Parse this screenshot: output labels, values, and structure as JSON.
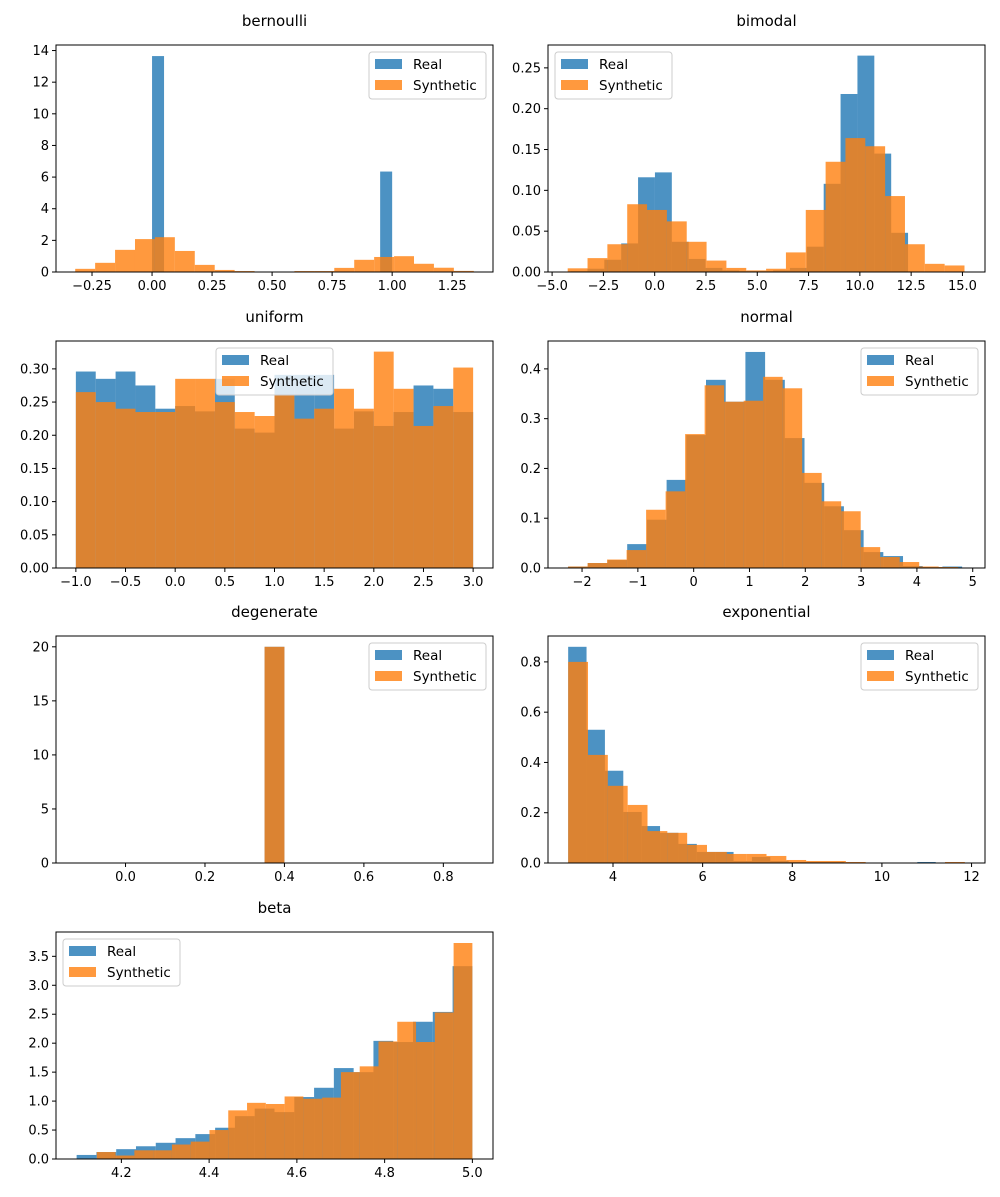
{
  "colors": {
    "real": "#1f77b4",
    "synthetic": "#ff7f0e",
    "alpha": 0.8
  },
  "chart_data": [
    {
      "type": "bar",
      "title": "bernoulli",
      "legend": "upper-right",
      "legend_entries": [
        "Real",
        "Synthetic"
      ],
      "xlim": [
        -0.4,
        1.42
      ],
      "ylim": [
        0,
        14.35
      ],
      "xticks": [
        -0.25,
        0,
        0.25,
        0.5,
        0.75,
        1.0,
        1.25
      ],
      "xtick_labels": [
        "−0.25",
        "0.00",
        "0.25",
        "0.50",
        "0.75",
        "1.00",
        "1.25"
      ],
      "yticks": [
        0,
        2,
        4,
        6,
        8,
        10,
        12,
        14
      ],
      "ytick_labels": [
        "0",
        "2",
        "4",
        "6",
        "8",
        "10",
        "12",
        "14"
      ],
      "series": [
        {
          "name": "Real",
          "range": [
            0,
            1
          ],
          "values": [
            13.65,
            0,
            0,
            0,
            0,
            0,
            0,
            0,
            0,
            0,
            0,
            0,
            0,
            0,
            0,
            0,
            0,
            0,
            0,
            6.35
          ]
        },
        {
          "name": "Synthetic",
          "range": [
            -0.32,
            1.34
          ],
          "values": [
            0.2,
            0.58,
            1.4,
            2.08,
            2.2,
            1.33,
            0.45,
            0.13,
            0.06,
            0,
            0,
            0.06,
            0.06,
            0.26,
            0.77,
            0.95,
            1.0,
            0.52,
            0.27,
            0.07
          ]
        }
      ]
    },
    {
      "type": "bar",
      "title": "bimodal",
      "legend": "upper-left",
      "legend_entries": [
        "Real",
        "Synthetic"
      ],
      "xlim": [
        -5.2,
        16.1
      ],
      "ylim": [
        0,
        0.278
      ],
      "xticks": [
        -5,
        -2.5,
        0,
        2.5,
        5,
        7.5,
        10,
        12.5,
        15
      ],
      "xtick_labels": [
        "−5.0",
        "−2.5",
        "0.0",
        "2.5",
        "5.0",
        "7.5",
        "10.0",
        "12.5",
        "15.0"
      ],
      "yticks": [
        0,
        0.05,
        0.1,
        0.15,
        0.2,
        0.25
      ],
      "ytick_labels": [
        "0.00",
        "0.05",
        "0.10",
        "0.15",
        "0.20",
        "0.25"
      ],
      "series": [
        {
          "name": "Real",
          "range": [
            -4.1,
            12.35
          ],
          "values": [
            0.001,
            0.004,
            0.015,
            0.035,
            0.116,
            0.122,
            0.037,
            0.016,
            0.005,
            0.002,
            0.001,
            0.001,
            0.002,
            0.005,
            0.031,
            0.108,
            0.218,
            0.265,
            0.145,
            0.048
          ]
        },
        {
          "name": "Synthetic",
          "range": [
            -4.24,
            15.1
          ],
          "values": [
            0.0045,
            0.017,
            0.034,
            0.083,
            0.076,
            0.062,
            0.037,
            0.014,
            0.005,
            0.002,
            0.004,
            0.024,
            0.076,
            0.135,
            0.164,
            0.154,
            0.093,
            0.034,
            0.01,
            0.008
          ]
        }
      ]
    },
    {
      "type": "bar",
      "title": "uniform",
      "legend": "upper-center",
      "legend_entries": [
        "Real",
        "Synthetic"
      ],
      "xlim": [
        -1.2,
        3.2
      ],
      "ylim": [
        0,
        0.342
      ],
      "xticks": [
        -1,
        -0.5,
        0,
        0.5,
        1,
        1.5,
        2,
        2.5,
        3
      ],
      "xtick_labels": [
        "−1.0",
        "−0.5",
        "0.0",
        "0.5",
        "1.0",
        "1.5",
        "2.0",
        "2.5",
        "3.0"
      ],
      "yticks": [
        0,
        0.05,
        0.1,
        0.15,
        0.2,
        0.25,
        0.3
      ],
      "ytick_labels": [
        "0.00",
        "0.05",
        "0.10",
        "0.15",
        "0.20",
        "0.25",
        "0.30"
      ],
      "series": [
        {
          "name": "Real",
          "range": [
            -1,
            3
          ],
          "values": [
            0.296,
            0.285,
            0.296,
            0.275,
            0.24,
            0.244,
            0.236,
            0.285,
            0.21,
            0.204,
            0.291,
            0.291,
            0.291,
            0.21,
            0.236,
            0.214,
            0.235,
            0.275,
            0.27,
            0.235
          ]
        },
        {
          "name": "Synthetic",
          "range": [
            -1,
            3
          ],
          "values": [
            0.265,
            0.25,
            0.24,
            0.235,
            0.235,
            0.285,
            0.285,
            0.25,
            0.235,
            0.229,
            0.261,
            0.225,
            0.24,
            0.27,
            0.24,
            0.326,
            0.27,
            0.214,
            0.244,
            0.302
          ]
        }
      ]
    },
    {
      "type": "bar",
      "title": "normal",
      "legend": "upper-right",
      "legend_entries": [
        "Real",
        "Synthetic"
      ],
      "xlim": [
        -2.61,
        5.22
      ],
      "ylim": [
        0,
        0.456
      ],
      "xticks": [
        -2,
        -1,
        0,
        1,
        2,
        3,
        4,
        5
      ],
      "xtick_labels": [
        "−2",
        "−1",
        "0",
        "1",
        "2",
        "3",
        "4",
        "5"
      ],
      "yticks": [
        0,
        0.1,
        0.2,
        0.3,
        0.4
      ],
      "ytick_labels": [
        "0.0",
        "0.1",
        "0.2",
        "0.3",
        "0.4"
      ],
      "series": [
        {
          "name": "Real",
          "range": [
            -2.25,
            4.81
          ],
          "values": [
            0.003,
            0.01,
            0.016,
            0.048,
            0.097,
            0.177,
            0.267,
            0.378,
            0.334,
            0.434,
            0.378,
            0.261,
            0.171,
            0.124,
            0.076,
            0.032,
            0.024,
            0.004,
            0.002,
            0.003
          ]
        },
        {
          "name": "Synthetic",
          "range": [
            -2.25,
            4.74
          ],
          "values": [
            0.003,
            0.01,
            0.017,
            0.036,
            0.117,
            0.154,
            0.269,
            0.367,
            0.334,
            0.336,
            0.384,
            0.361,
            0.191,
            0.134,
            0.114,
            0.042,
            0.022,
            0.012,
            0.003,
            0.002
          ]
        }
      ]
    },
    {
      "type": "bar",
      "title": "degenerate",
      "legend": "upper-right",
      "legend_entries": [
        "Real",
        "Synthetic"
      ],
      "xlim": [
        -0.175,
        0.925
      ],
      "ylim": [
        0,
        21
      ],
      "xticks": [
        0,
        0.2,
        0.4,
        0.6,
        0.8
      ],
      "xtick_labels": [
        "0.0",
        "0.2",
        "0.4",
        "0.6",
        "0.8"
      ],
      "yticks": [
        0,
        5,
        10,
        15,
        20
      ],
      "ytick_labels": [
        "0",
        "5",
        "10",
        "15",
        "20"
      ],
      "series": [
        {
          "name": "Real",
          "range": [
            -0.1,
            0.9
          ],
          "values": [
            0,
            0,
            0,
            0,
            0,
            0,
            0,
            0,
            0,
            20,
            0,
            0,
            0,
            0,
            0,
            0,
            0,
            0,
            0,
            0
          ]
        },
        {
          "name": "Synthetic",
          "range": [
            -0.1,
            0.9
          ],
          "values": [
            0,
            0,
            0,
            0,
            0,
            0,
            0,
            0,
            0,
            20,
            0,
            0,
            0,
            0,
            0,
            0,
            0,
            0,
            0,
            0
          ]
        }
      ]
    },
    {
      "type": "bar",
      "title": "exponential",
      "legend": "upper-right",
      "legend_entries": [
        "Real",
        "Synthetic"
      ],
      "xlim": [
        2.55,
        12.3
      ],
      "ylim": [
        0,
        0.903
      ],
      "xticks": [
        4,
        6,
        8,
        10,
        12
      ],
      "xtick_labels": [
        "4",
        "6",
        "8",
        "10",
        "12"
      ],
      "yticks": [
        0,
        0.2,
        0.4,
        0.6,
        0.8
      ],
      "ytick_labels": [
        "0.0",
        "0.2",
        "0.4",
        "0.6",
        "0.8"
      ],
      "series": [
        {
          "name": "Real",
          "range": [
            3.0,
            11.2
          ],
          "values": [
            0.86,
            0.53,
            0.367,
            0.203,
            0.147,
            0.12,
            0.076,
            0.044,
            0.044,
            0.008,
            0.024,
            0.008,
            0.004,
            0.004,
            0.004,
            0.002,
            0,
            0,
            0,
            0.004
          ]
        },
        {
          "name": "Synthetic",
          "range": [
            3.0,
            11.85
          ],
          "values": [
            0.8,
            0.43,
            0.307,
            0.231,
            0.127,
            0.12,
            0.072,
            0.044,
            0.036,
            0.036,
            0.028,
            0.012,
            0.008,
            0.008,
            0.004,
            0,
            0,
            0,
            0,
            0.004
          ]
        }
      ]
    },
    {
      "type": "bar",
      "title": "beta",
      "legend": "upper-left",
      "legend_entries": [
        "Real",
        "Synthetic"
      ],
      "xlim": [
        4.051,
        5.047
      ],
      "ylim": [
        0,
        3.92
      ],
      "xticks": [
        4.2,
        4.4,
        4.6,
        4.8,
        5.0
      ],
      "xtick_labels": [
        "4.2",
        "4.4",
        "4.6",
        "4.8",
        "5.0"
      ],
      "yticks": [
        0,
        0.5,
        1,
        1.5,
        2,
        2.5,
        3,
        3.5
      ],
      "ytick_labels": [
        "0.0",
        "0.5",
        "1.0",
        "1.5",
        "2.0",
        "2.5",
        "3.0",
        "3.5"
      ],
      "series": [
        {
          "name": "Real",
          "range": [
            4.098,
            5.0
          ],
          "values": [
            0.07,
            0.12,
            0.17,
            0.22,
            0.28,
            0.36,
            0.43,
            0.54,
            0.74,
            0.87,
            0.81,
            1.07,
            1.23,
            1.57,
            1.5,
            2.04,
            2.02,
            2.37,
            2.54,
            3.33
          ]
        },
        {
          "name": "Synthetic",
          "range": [
            4.144,
            5.0
          ],
          "values": [
            0.12,
            0.06,
            0.15,
            0.15,
            0.25,
            0.3,
            0.5,
            0.84,
            0.97,
            0.95,
            1.08,
            1.04,
            1.06,
            1.5,
            1.6,
            2.03,
            2.37,
            2.02,
            2.53,
            3.73
          ]
        }
      ]
    }
  ]
}
